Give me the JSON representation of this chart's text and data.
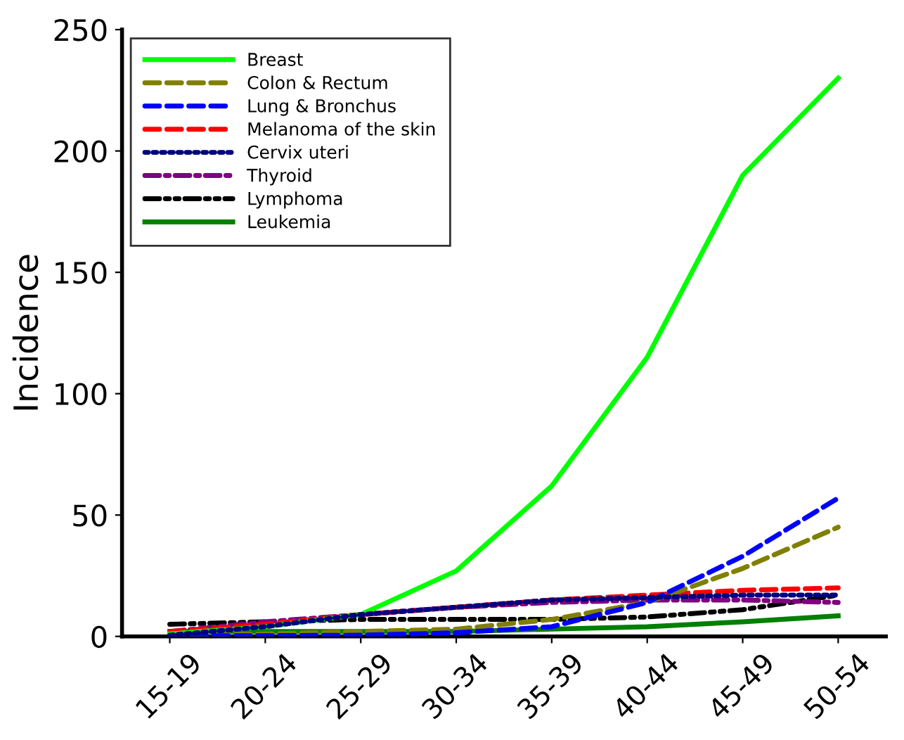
{
  "chart_data": {
    "type": "line",
    "ylabel": "Incidence",
    "categories": [
      "15-19",
      "20-24",
      "25-29",
      "30-34",
      "35-39",
      "40-44",
      "45-49",
      "50-54"
    ],
    "ylim": [
      0,
      250
    ],
    "yticks": [
      0,
      50,
      100,
      150,
      200,
      250
    ],
    "grid": false,
    "legend": "top left",
    "marker": "none",
    "series": [
      {
        "name": "Breast",
        "color": "#00ff00",
        "line_style": "solid",
        "values": [
          1,
          4,
          9,
          27,
          62,
          115,
          190,
          230
        ]
      },
      {
        "name": "Colon & Rectum",
        "color": "#808000",
        "line_style": "dashed",
        "values": [
          0.5,
          1,
          2,
          3,
          7,
          14,
          28,
          45
        ]
      },
      {
        "name": "Lung & Bronchus",
        "color": "#0000ff",
        "line_style": "dashed",
        "values": [
          0.3,
          0.3,
          0.5,
          1.5,
          4,
          14,
          33,
          57
        ]
      },
      {
        "name": "Melanoma of the skin",
        "color": "#ff0000",
        "line_style": "dashed",
        "values": [
          2,
          5,
          9,
          12,
          15,
          17,
          19,
          20
        ]
      },
      {
        "name": "Cervix uteri",
        "color": "#000080",
        "line_style": "dotted",
        "values": [
          0.5,
          4,
          9,
          12,
          15,
          16,
          17,
          17
        ]
      },
      {
        "name": "Thyroid",
        "color": "#800080",
        "line_style": "dashdot",
        "values": [
          2,
          6,
          9,
          12,
          14,
          15,
          15,
          14
        ]
      },
      {
        "name": "Lymphoma",
        "color": "#000000",
        "line_style": "dashdotdot",
        "values": [
          5,
          6,
          7,
          7,
          7,
          8,
          11,
          17
        ]
      },
      {
        "name": "Leukemia",
        "color": "#008000",
        "line_style": "solid",
        "values": [
          2,
          2,
          2,
          2,
          3,
          4,
          6,
          8.5
        ]
      }
    ]
  }
}
